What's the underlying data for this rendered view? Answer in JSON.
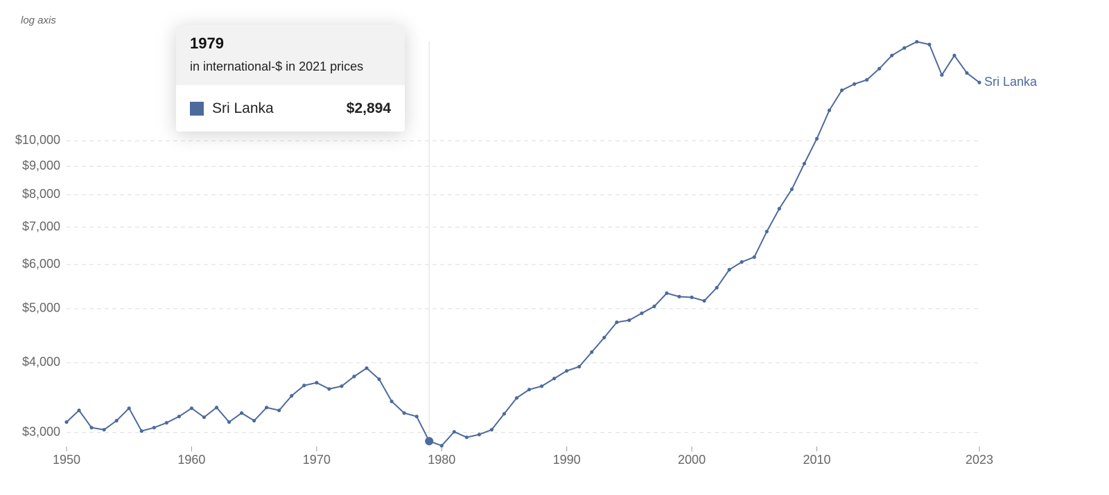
{
  "chart_data": {
    "type": "line",
    "y_axis_label": "log axis",
    "log_scale": true,
    "grid": true,
    "x": [
      1950,
      1951,
      1952,
      1953,
      1954,
      1955,
      1956,
      1957,
      1958,
      1959,
      1960,
      1961,
      1962,
      1963,
      1964,
      1965,
      1966,
      1967,
      1968,
      1969,
      1970,
      1971,
      1972,
      1973,
      1974,
      1975,
      1976,
      1977,
      1978,
      1979,
      1980,
      1981,
      1982,
      1983,
      1984,
      1985,
      1986,
      1987,
      1988,
      1989,
      1990,
      1991,
      1992,
      1993,
      1994,
      1995,
      1996,
      1997,
      1998,
      1999,
      2000,
      2001,
      2002,
      2003,
      2004,
      2005,
      2006,
      2007,
      2008,
      2009,
      2010,
      2011,
      2012,
      2013,
      2014,
      2015,
      2016,
      2017,
      2018,
      2019,
      2020,
      2021,
      2022,
      2023
    ],
    "series": [
      {
        "name": "Sri Lanka",
        "color": "#4c6a9c",
        "values": [
          3131,
          3286,
          3060,
          3034,
          3149,
          3315,
          3017,
          3060,
          3122,
          3204,
          3315,
          3194,
          3325,
          3131,
          3250,
          3149,
          3325,
          3286,
          3489,
          3642,
          3684,
          3590,
          3631,
          3780,
          3912,
          3737,
          3410,
          3250,
          3204,
          2894,
          2840,
          3008,
          2940,
          2974,
          3034,
          3240,
          3459,
          3581,
          3631,
          3748,
          3868,
          3936,
          4180,
          4438,
          4727,
          4768,
          4906,
          5048,
          5330,
          5255,
          5240,
          5165,
          5453,
          5874,
          6064,
          6187,
          6875,
          7557,
          8185,
          9100,
          10086,
          11340,
          12320,
          12640,
          12860,
          13470,
          14220,
          14670,
          15050,
          14880,
          13120,
          14220,
          13230,
          12720
        ]
      }
    ],
    "xlim": [
      1950,
      2023
    ],
    "xticks": [
      1950,
      1960,
      1970,
      1980,
      1990,
      2000,
      2010,
      2023
    ],
    "ylim": [
      2790,
      15500
    ],
    "yticks": [
      {
        "value": 3000,
        "label": "$3,000"
      },
      {
        "value": 4000,
        "label": "$4,000"
      },
      {
        "value": 5000,
        "label": "$5,000"
      },
      {
        "value": 6000,
        "label": "$6,000"
      },
      {
        "value": 7000,
        "label": "$7,000"
      },
      {
        "value": 8000,
        "label": "$8,000"
      },
      {
        "value": 9000,
        "label": "$9,000"
      },
      {
        "value": 10000,
        "label": "$10,000"
      }
    ],
    "tooltip": {
      "x": 1979,
      "subtitle": "in international-$ in 2021 prices",
      "value_label": "$2,894"
    }
  }
}
